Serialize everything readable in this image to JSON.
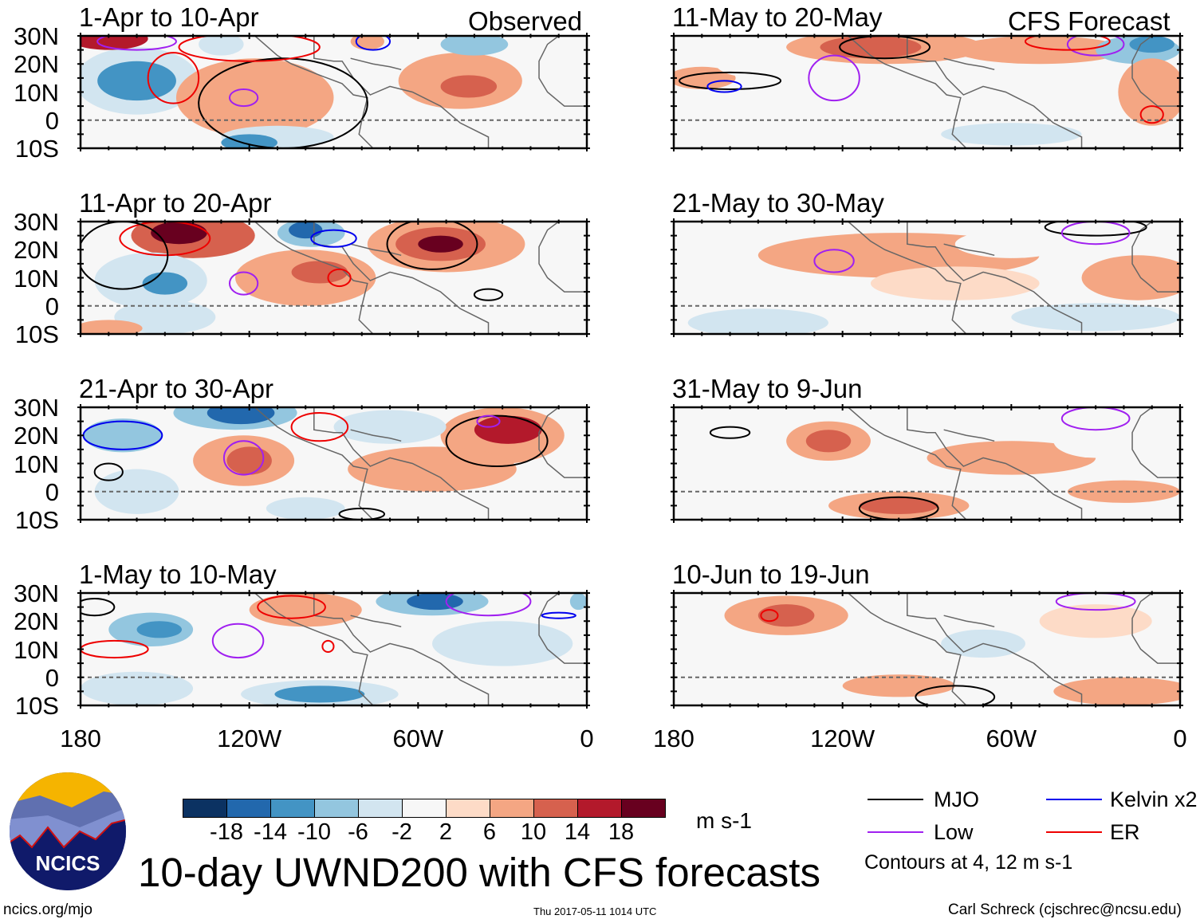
{
  "chart_data": {
    "type": "heatmap",
    "title": "10-day UWND200 with CFS forecasts",
    "units": "m s-1",
    "contour_note": "Contours at 4, 12 m s-1",
    "column_headers": [
      "Observed",
      "CFS Forecast"
    ],
    "ylabels": [
      "30N",
      "20N",
      "10N",
      "0",
      "10S"
    ],
    "xlabels": [
      "180",
      "120W",
      "60W",
      "0"
    ],
    "lon_range": [
      -180,
      0
    ],
    "lat_range": [
      -10,
      30
    ],
    "colorbar": {
      "levels": [
        "-18",
        "-14",
        "-10",
        "-6",
        "-2",
        "2",
        "6",
        "10",
        "14",
        "18"
      ],
      "colors": [
        "#0b3262",
        "#2268ad",
        "#4394c4",
        "#93c6df",
        "#d2e5f0",
        "#f7f7f7",
        "#fddbc7",
        "#f4a683",
        "#d6614e",
        "#b3192b",
        "#68001f"
      ]
    },
    "legend": [
      {
        "label": "MJO",
        "color": "#000000"
      },
      {
        "label": "Kelvin x2",
        "color": "#0000ee"
      },
      {
        "label": "Low",
        "color": "#a020f0"
      },
      {
        "label": "ER",
        "color": "#ee0000"
      }
    ],
    "panels": [
      {
        "title": "1-Apr to 10-Apr",
        "col": 0,
        "row": 0,
        "blobs": [
          [
            -160,
            14,
            22,
            12,
            -6
          ],
          [
            -160,
            14,
            14,
            7,
            -14
          ],
          [
            -118,
            8,
            28,
            14,
            6
          ],
          [
            -110,
            -6,
            20,
            4,
            -6
          ],
          [
            -120,
            -8,
            10,
            3,
            -14
          ],
          [
            -170,
            29,
            14,
            4,
            14
          ],
          [
            -45,
            14,
            22,
            10,
            6
          ],
          [
            -42,
            12,
            10,
            4,
            10
          ],
          [
            -40,
            27,
            12,
            4,
            -10
          ],
          [
            -130,
            27,
            8,
            4,
            -6
          ],
          [
            -78,
            28,
            6,
            3,
            6
          ]
        ],
        "contours": [
          [
            -147,
            15,
            9,
            9,
            "ER"
          ],
          [
            -122,
            8,
            5,
            3,
            "Low"
          ],
          [
            -108,
            6,
            30,
            16,
            "MJO"
          ],
          [
            -120,
            26,
            25,
            5,
            "ER"
          ],
          [
            -76,
            28,
            6,
            3,
            "Kelvin x2"
          ],
          [
            -160,
            28,
            14,
            3,
            "Low"
          ]
        ]
      },
      {
        "title": "11-Apr to 20-Apr",
        "col": 0,
        "row": 1,
        "blobs": [
          [
            -140,
            25,
            22,
            8,
            10
          ],
          [
            -145,
            26,
            10,
            4,
            18
          ],
          [
            -155,
            9,
            20,
            10,
            -6
          ],
          [
            -150,
            8,
            8,
            4,
            -14
          ],
          [
            -150,
            -4,
            18,
            6,
            -6
          ],
          [
            -98,
            26,
            12,
            5,
            -10
          ],
          [
            -100,
            27,
            6,
            3,
            -18
          ],
          [
            -100,
            10,
            25,
            10,
            6
          ],
          [
            -95,
            12,
            10,
            4,
            10
          ],
          [
            -50,
            22,
            28,
            10,
            6
          ],
          [
            -52,
            22,
            16,
            6,
            10
          ],
          [
            -52,
            22,
            8,
            3,
            18
          ],
          [
            -170,
            -8,
            12,
            3,
            6
          ]
        ],
        "contours": [
          [
            -55,
            22,
            16,
            9,
            "MJO"
          ],
          [
            -122,
            8,
            5,
            4,
            "Low"
          ],
          [
            -90,
            24,
            8,
            3,
            "Kelvin x2"
          ],
          [
            -150,
            24,
            16,
            6,
            "ER"
          ],
          [
            -165,
            18,
            16,
            12,
            "MJO"
          ],
          [
            -88,
            10,
            4,
            3,
            "ER"
          ],
          [
            -35,
            4,
            5,
            2,
            "MJO"
          ]
        ]
      },
      {
        "title": "21-Apr to 30-Apr",
        "col": 0,
        "row": 2,
        "blobs": [
          [
            -125,
            28,
            22,
            6,
            -10
          ],
          [
            -123,
            28,
            12,
            4,
            -18
          ],
          [
            -165,
            20,
            14,
            6,
            -10
          ],
          [
            -122,
            11,
            18,
            9,
            6
          ],
          [
            -120,
            11,
            8,
            5,
            10
          ],
          [
            -30,
            20,
            22,
            10,
            6
          ],
          [
            -28,
            22,
            12,
            5,
            14
          ],
          [
            -70,
            23,
            20,
            6,
            -6
          ],
          [
            -55,
            8,
            30,
            8,
            6
          ],
          [
            -160,
            0,
            15,
            8,
            -6
          ],
          [
            -100,
            -6,
            14,
            4,
            -6
          ]
        ],
        "contours": [
          [
            -165,
            20,
            14,
            5,
            "Kelvin x2"
          ],
          [
            -122,
            12,
            7,
            6,
            "Low"
          ],
          [
            -32,
            18,
            18,
            9,
            "MJO"
          ],
          [
            -170,
            7,
            5,
            3,
            "MJO"
          ],
          [
            -95,
            23,
            10,
            5,
            "ER"
          ],
          [
            -80,
            -8,
            8,
            2,
            "MJO"
          ],
          [
            -35,
            25,
            4,
            2,
            "Low"
          ]
        ]
      },
      {
        "title": "1-May to 10-May",
        "col": 0,
        "row": 3,
        "blobs": [
          [
            -155,
            17,
            15,
            6,
            -10
          ],
          [
            -152,
            17,
            8,
            3,
            -14
          ],
          [
            -55,
            27,
            20,
            5,
            -10
          ],
          [
            -54,
            27,
            10,
            3,
            -18
          ],
          [
            -95,
            -6,
            28,
            5,
            -6
          ],
          [
            -95,
            -6,
            16,
            3,
            -14
          ],
          [
            -100,
            24,
            20,
            6,
            6
          ],
          [
            -30,
            12,
            25,
            8,
            -6
          ],
          [
            -160,
            -4,
            20,
            6,
            -6
          ],
          [
            -3,
            27,
            3,
            3,
            -10
          ]
        ],
        "contours": [
          [
            -124,
            13,
            9,
            6,
            "Low"
          ],
          [
            -168,
            10,
            12,
            3,
            "ER"
          ],
          [
            -105,
            25,
            12,
            4,
            "ER"
          ],
          [
            -35,
            27,
            15,
            5,
            "Low"
          ],
          [
            -10,
            22,
            6,
            1,
            "Kelvin x2"
          ],
          [
            -175,
            25,
            7,
            3,
            "MJO"
          ],
          [
            -92,
            11,
            2,
            2,
            "ER"
          ]
        ]
      },
      {
        "title": "11-May to 20-May",
        "col": 1,
        "row": 0,
        "blobs": [
          [
            -105,
            26,
            35,
            6,
            6
          ],
          [
            -110,
            26,
            18,
            4,
            10
          ],
          [
            -50,
            25,
            30,
            5,
            6
          ],
          [
            -15,
            25,
            15,
            5,
            -10
          ],
          [
            -10,
            27,
            8,
            3,
            -14
          ],
          [
            -170,
            15,
            12,
            4,
            6
          ],
          [
            -150,
            20,
            15,
            5,
            -2
          ],
          [
            -60,
            -5,
            25,
            4,
            -6
          ],
          [
            -10,
            10,
            12,
            12,
            6
          ]
        ],
        "contours": [
          [
            -105,
            26,
            16,
            4,
            "MJO"
          ],
          [
            -160,
            14,
            18,
            3,
            "MJO"
          ],
          [
            -162,
            12,
            6,
            2,
            "Kelvin x2"
          ],
          [
            -123,
            15,
            9,
            8,
            "Low"
          ],
          [
            -30,
            27,
            10,
            4,
            "Low"
          ],
          [
            -40,
            28,
            15,
            3,
            "ER"
          ],
          [
            -10,
            2,
            4,
            3,
            "ER"
          ]
        ]
      },
      {
        "title": "21-May to 30-May",
        "col": 1,
        "row": 1,
        "blobs": [
          [
            -100,
            18,
            50,
            8,
            6
          ],
          [
            -80,
            8,
            30,
            6,
            2
          ],
          [
            -150,
            -6,
            25,
            5,
            -6
          ],
          [
            -30,
            -4,
            30,
            5,
            -6
          ],
          [
            -15,
            10,
            20,
            8,
            6
          ],
          [
            -60,
            22,
            20,
            5,
            -2
          ]
        ],
        "contours": [
          [
            -123,
            16,
            7,
            4,
            "Low"
          ],
          [
            -30,
            28,
            18,
            3,
            "MJO"
          ],
          [
            -30,
            26,
            12,
            4,
            "Low"
          ]
        ]
      },
      {
        "title": "31-May to 9-Jun",
        "col": 1,
        "row": 2,
        "blobs": [
          [
            -125,
            18,
            15,
            7,
            6
          ],
          [
            -125,
            18,
            8,
            4,
            10
          ],
          [
            -100,
            -5,
            25,
            5,
            6
          ],
          [
            -100,
            -5,
            14,
            3,
            10
          ],
          [
            -60,
            12,
            30,
            6,
            6
          ],
          [
            -30,
            18,
            15,
            6,
            -2
          ],
          [
            -160,
            5,
            20,
            5,
            -2
          ],
          [
            -20,
            0,
            20,
            4,
            6
          ]
        ],
        "contours": [
          [
            -100,
            -6,
            14,
            4,
            "MJO"
          ],
          [
            -160,
            21,
            7,
            2,
            "MJO"
          ],
          [
            -30,
            26,
            12,
            4,
            "Low"
          ]
        ]
      },
      {
        "title": "10-Jun to 19-Jun",
        "col": 1,
        "row": 3,
        "blobs": [
          [
            -140,
            22,
            22,
            7,
            6
          ],
          [
            -140,
            22,
            10,
            4,
            10
          ],
          [
            -100,
            -3,
            20,
            4,
            6
          ],
          [
            -70,
            12,
            15,
            5,
            -6
          ],
          [
            -160,
            -3,
            12,
            4,
            -2
          ],
          [
            -20,
            -5,
            25,
            5,
            6
          ],
          [
            -30,
            20,
            20,
            6,
            2
          ]
        ],
        "contours": [
          [
            -146,
            22,
            3,
            2,
            "ER"
          ],
          [
            -80,
            -7,
            14,
            4,
            "MJO"
          ],
          [
            -30,
            27,
            14,
            3,
            "Low"
          ]
        ]
      }
    ]
  },
  "footer": {
    "logo_text": "NCICS",
    "url": "ncics.org/mjo",
    "timestamp": "Thu 2017-05-11 1014 UTC",
    "author": "Carl Schreck (cjschrec@ncsu.edu)"
  }
}
